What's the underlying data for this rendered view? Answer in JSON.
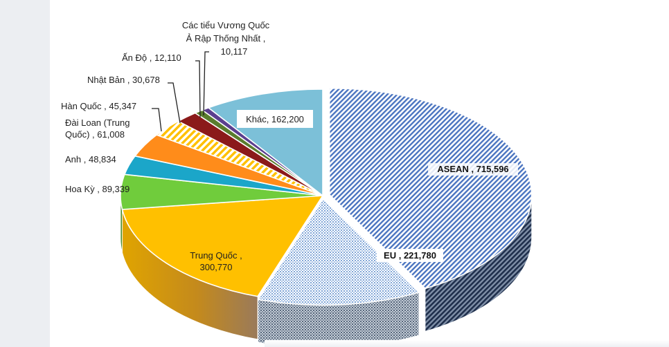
{
  "chart_data": {
    "type": "pie",
    "subtype": "3d-exploded-pie",
    "slices": [
      {
        "label": "ASEAN",
        "value": 715596,
        "text": "715,596",
        "color": "#4a74c0",
        "pattern": "hatch-blue"
      },
      {
        "label": "EU",
        "value": 221780,
        "text": "221,780",
        "color": "#b8cde8",
        "pattern": "dots-blue"
      },
      {
        "label": "Trung Quốc",
        "value": 300770,
        "text": "300,770",
        "color": "#ffc000",
        "pattern": "solid"
      },
      {
        "label": "Hoa Kỳ",
        "value": 89339,
        "text": "89,339",
        "color": "#70cc3c",
        "pattern": "solid"
      },
      {
        "label": "Anh",
        "value": 48834,
        "text": "48,834",
        "color": "#1ba6c9",
        "pattern": "solid"
      },
      {
        "label": "Đài Loan (Trung Quốc)",
        "value": 61008,
        "text": "61,008",
        "color": "#ff8c1a",
        "pattern": "solid"
      },
      {
        "label": "Hàn Quốc",
        "value": 45347,
        "text": "45,347",
        "color": "#ffc000",
        "pattern": "stripe-yellow"
      },
      {
        "label": "Nhật Bản",
        "value": 30678,
        "text": "30,678",
        "color": "#8b1a1a",
        "pattern": "solid"
      },
      {
        "label": "Ấn Độ",
        "value": 12110,
        "text": "12,110",
        "color": "#5a7d2e",
        "pattern": "solid"
      },
      {
        "label": "Các tiểu Vương Quốc Ả Rập Thống Nhất",
        "value": 10117,
        "text": "10,117",
        "color": "#5b3f8f",
        "pattern": "solid"
      },
      {
        "label": "Khác",
        "value": 162200,
        "text": "162,200",
        "color": "#7cc0d8",
        "pattern": "solid"
      }
    ],
    "labels_text": {
      "asean": "ASEAN , 715,596",
      "eu": "EU , 221,780",
      "trung_quoc_1": "Trung Quốc ,",
      "trung_quoc_2": "300,770",
      "hoa_ky": "Hoa Kỳ , 89,339",
      "anh": "Anh , 48,834",
      "dai_loan_1": "Đài Loan (Trung",
      "dai_loan_2": "Quốc) , 61,008",
      "han_quoc": "Hàn Quốc , 45,347",
      "nhat_ban": "Nhật Bản , 30,678",
      "an_do": "Ấn Độ , 12,110",
      "uae_1": "Các tiểu Vương Quốc",
      "uae_2": "Ả Rập Thống Nhất ,",
      "uae_3": "10,117",
      "khac": "Khác, 162,200"
    }
  }
}
